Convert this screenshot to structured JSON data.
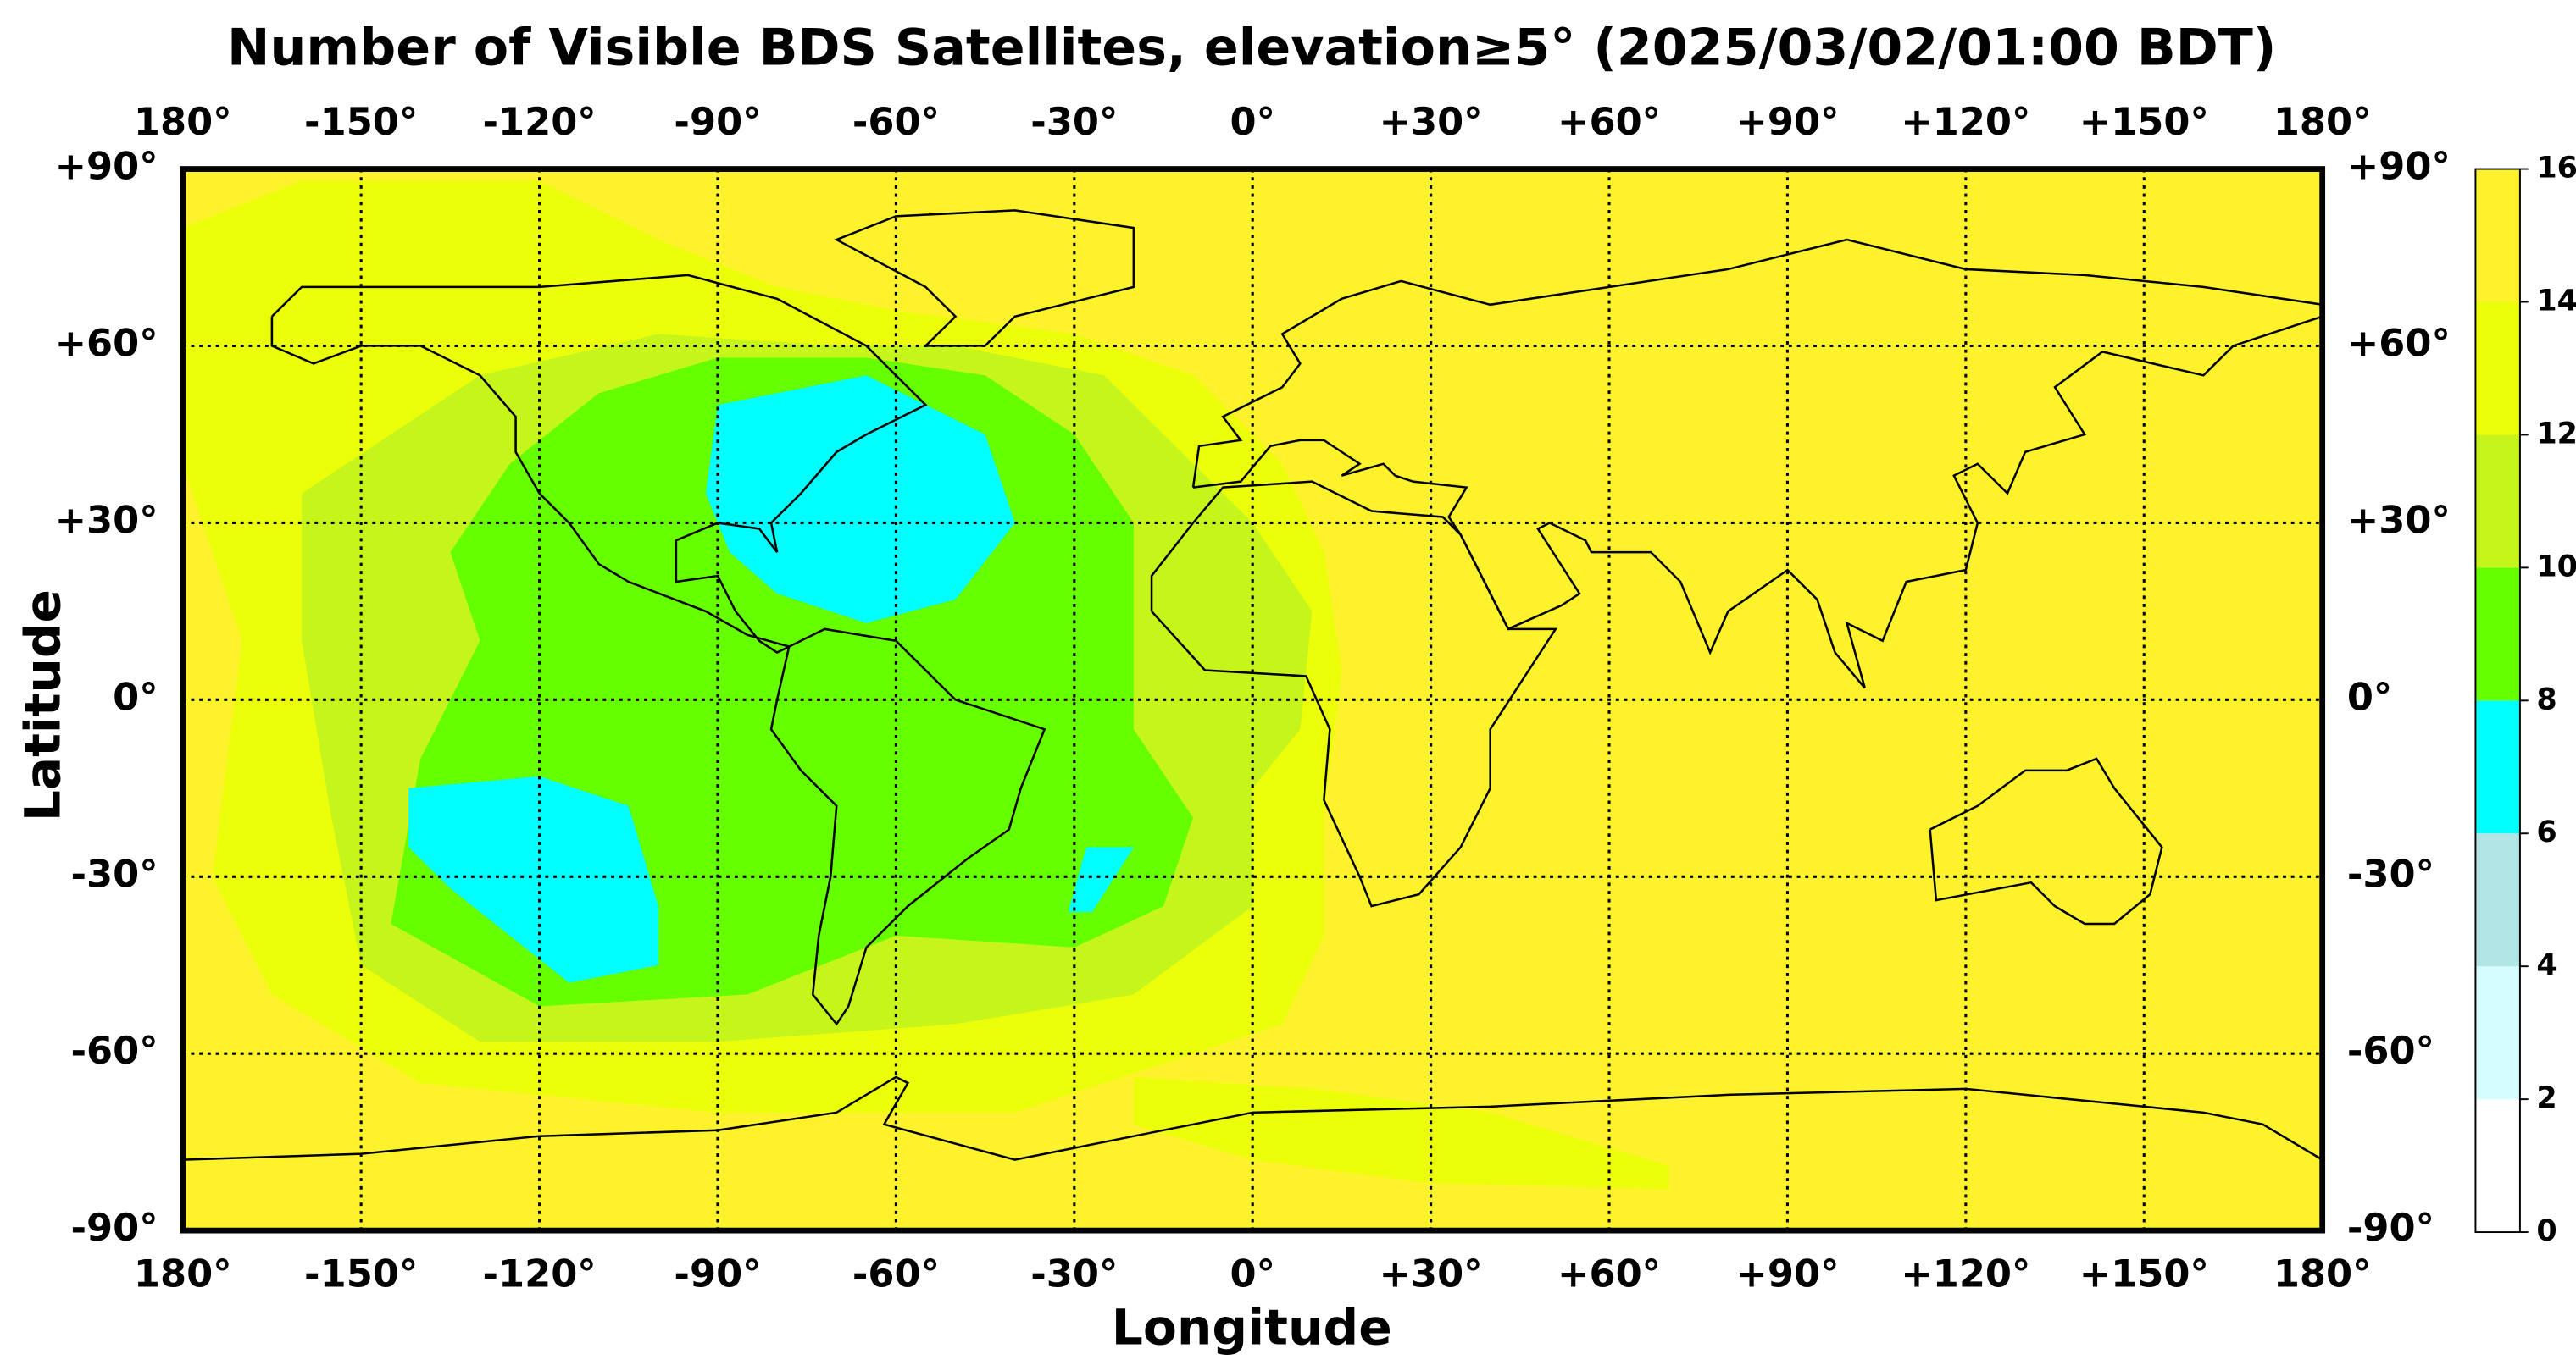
{
  "chart_data": {
    "type": "map",
    "title": "Number of Visible BDS Satellites, elevation≥5° (2025/03/02/01:00 BDT)",
    "x_label": "Longitude",
    "y_label": "Latitude",
    "xlim": [
      -180,
      180
    ],
    "ylim": [
      -90,
      90
    ],
    "xticks": [
      {
        "value": -180,
        "label": "180°"
      },
      {
        "value": -150,
        "label": "-150°"
      },
      {
        "value": -120,
        "label": "-120°"
      },
      {
        "value": -90,
        "label": "-90°"
      },
      {
        "value": -60,
        "label": "-60°"
      },
      {
        "value": -30,
        "label": "-30°"
      },
      {
        "value": 0,
        "label": "0°"
      },
      {
        "value": 30,
        "label": "+30°"
      },
      {
        "value": 60,
        "label": "+60°"
      },
      {
        "value": 90,
        "label": "+90°"
      },
      {
        "value": 120,
        "label": "+120°"
      },
      {
        "value": 150,
        "label": "+150°"
      },
      {
        "value": 180,
        "label": "180°"
      }
    ],
    "yticks": [
      {
        "value": 90,
        "label": "+90°"
      },
      {
        "value": 60,
        "label": "+60°"
      },
      {
        "value": 30,
        "label": "+30°"
      },
      {
        "value": 0,
        "label": "0°"
      },
      {
        "value": -30,
        "label": "-30°"
      },
      {
        "value": -60,
        "label": "-60°"
      },
      {
        "value": -90,
        "label": "-90°"
      }
    ],
    "grid": true,
    "colorbar": {
      "levels": [
        0,
        2,
        4,
        6,
        8,
        10,
        12,
        14,
        16
      ],
      "colors": [
        "#ffffff",
        "#d6fdfd",
        "#b2e6e6",
        "#00ffff",
        "#66ff00",
        "#c6f51c",
        "#ecff0a",
        "#fef22c"
      ]
    }
  }
}
